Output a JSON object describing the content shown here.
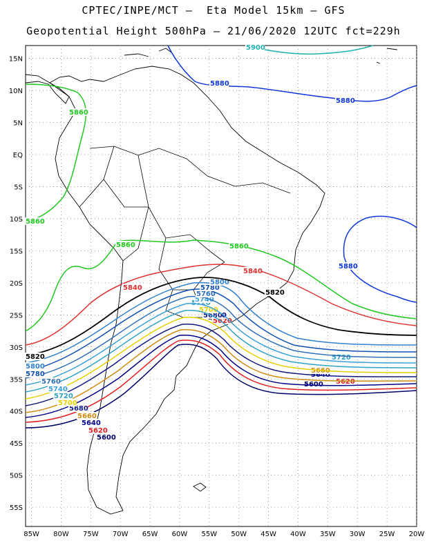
{
  "header": {
    "line1": "CPTEC/INPE/MCT –  Eta Model 15km – GFS",
    "line2": "Geopotential Height 500hPa – 21/06/2020 12UTC fct=229h"
  },
  "axes": {
    "lon_ticks": [
      "85W",
      "80W",
      "75W",
      "70W",
      "65W",
      "60W",
      "55W",
      "50W",
      "45W",
      "40W",
      "35W",
      "30W",
      "25W",
      "20W"
    ],
    "lat_ticks": [
      "15N",
      "10N",
      "5N",
      "EQ",
      "5S",
      "10S",
      "15S",
      "20S",
      "25S",
      "30S",
      "35S",
      "40S",
      "45S",
      "50S",
      "55S"
    ],
    "lon_range": [
      -86,
      -20
    ],
    "lat_range": [
      17,
      -58
    ]
  },
  "contour_levels": [
    {
      "value": 5600,
      "label": "5600",
      "color": "#000066"
    },
    {
      "value": 5620,
      "label": "5620",
      "color": "#e02020"
    },
    {
      "value": 5640,
      "label": "5640",
      "color": "#000088"
    },
    {
      "value": 5660,
      "label": "5660",
      "color": "#d08a10"
    },
    {
      "value": 5680,
      "label": "5680",
      "color": "#101880"
    },
    {
      "value": 5700,
      "label": "5700",
      "color": "#e6d000"
    },
    {
      "value": 5720,
      "label": "5720",
      "color": "#2fa0c8"
    },
    {
      "value": 5740,
      "label": "5740",
      "color": "#3aa0d8"
    },
    {
      "value": 5760,
      "label": "5760",
      "color": "#3070b8"
    },
    {
      "value": 5780,
      "label": "5780",
      "color": "#1050b0"
    },
    {
      "value": 5800,
      "label": "5800",
      "color": "#3080d0"
    },
    {
      "value": 5820,
      "label": "5820",
      "color": "#000000"
    },
    {
      "value": 5840,
      "label": "5840",
      "color": "#e03030"
    },
    {
      "value": 5860,
      "label": "5860",
      "color": "#20c820"
    },
    {
      "value": 5880,
      "label": "5880",
      "color": "#1038d8"
    },
    {
      "value": 5900,
      "label": "5900",
      "color": "#20b0b0"
    }
  ]
}
